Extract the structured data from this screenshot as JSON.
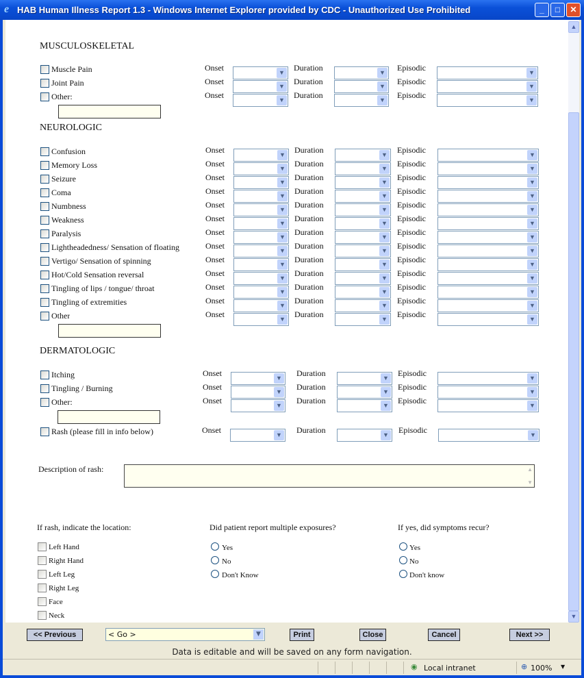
{
  "window": {
    "title": "HAB Human Illness Report 1.3 - Windows Internet Explorer provided by CDC - Unauthorized Use Prohibited"
  },
  "labels": {
    "onset": "Onset",
    "duration": "Duration",
    "episodic": "Episodic"
  },
  "sections": [
    {
      "title": "MUSCULOSKELETAL",
      "items": [
        "Muscle Pain",
        "Joint Pain",
        "Other:"
      ]
    },
    {
      "title": "NEUROLOGIC",
      "items": [
        "Confusion",
        "Memory Loss",
        "Seizure",
        "Coma",
        "Numbness",
        "Weakness",
        "Paralysis",
        "Lightheadedness/ Sensation of floating",
        "Vertigo/ Sensation of spinning",
        "Hot/Cold Sensation reversal",
        "Tingling of lips / tongue/ throat",
        "Tingling of extremities",
        "Other"
      ]
    },
    {
      "title": "DERMATOLOGIC",
      "items": [
        "Itching",
        "Tingling / Burning",
        "Other:"
      ],
      "rash": "Rash (please fill in info below)"
    }
  ],
  "rash_description": {
    "label": "Description of rash:",
    "value": ""
  },
  "location": {
    "label": "If rash, indicate the location:",
    "options": [
      "Left Hand",
      "Right Hand",
      "Left Leg",
      "Right Leg",
      "Face",
      "Neck"
    ]
  },
  "multiple_exposures": {
    "label": "Did patient report multiple exposures?",
    "options": [
      "Yes",
      "No",
      "Don't Know"
    ]
  },
  "recur": {
    "label": "If yes, did symptoms recur?",
    "options": [
      "Yes",
      "No",
      "Don't know"
    ]
  },
  "nav": {
    "previous": "<< Previous",
    "go": "< Go >",
    "print": "Print",
    "close": "Close",
    "cancel": "Cancel",
    "next": "Next >>"
  },
  "note": "Data is editable and will be saved on any form navigation.",
  "status": {
    "zone": "Local intranet",
    "zoom": "100%"
  }
}
